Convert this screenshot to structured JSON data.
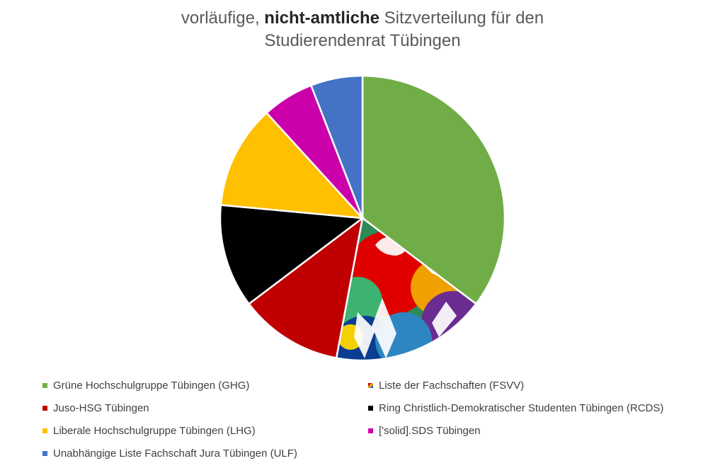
{
  "title": {
    "line1_pre": "vorläufige, ",
    "line1_bold": "nicht-amtliche",
    "line1_post": " Sitzverteilung für den",
    "line2": "Studierendenrat Tübingen"
  },
  "chart_data": {
    "type": "pie",
    "title": "vorläufige, nicht-amtliche Sitzverteilung für den Studierendenrat Tübingen",
    "slices": [
      {
        "label": "Grüne Hochschulgruppe Tübingen (GHG)",
        "value": 6,
        "color": "#70ad47"
      },
      {
        "label": "Liste der Fachschaften (FSVV)",
        "value": 3,
        "color": "pattern"
      },
      {
        "label": "Juso-HSG Tübingen",
        "value": 2,
        "color": "#c00000"
      },
      {
        "label": "Ring Christlich-Demokratischer Studenten Tübingen (RCDS)",
        "value": 2,
        "color": "#000000"
      },
      {
        "label": "Liberale Hochschulgruppe Tübingen (LHG)",
        "value": 2,
        "color": "#ffc000"
      },
      {
        "label": "['solid].SDS Tübingen",
        "value": 1,
        "color": "#cc00aa"
      },
      {
        "label": "Unabhängige Liste Fachschaft Jura Tübingen (ULF)",
        "value": 1,
        "color": "#4472c4"
      }
    ],
    "legend_position": "bottom"
  }
}
